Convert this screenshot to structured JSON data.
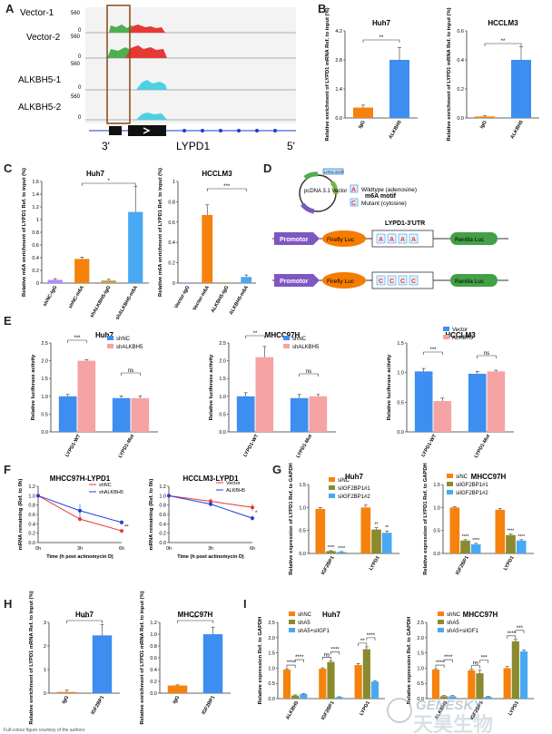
{
  "panels": {
    "A": {
      "label": "A",
      "tracks": [
        {
          "name": "Vector-1",
          "ymax": "560",
          "ymin": "0"
        },
        {
          "name": "Vector-2",
          "ymax": "560",
          "ymin": "0"
        },
        {
          "name": "ALKBH5-1",
          "ymax": "560",
          "ymin": "0"
        },
        {
          "name": "ALKBH5-2",
          "ymax": "560",
          "ymin": "0"
        }
      ],
      "end3": "3'",
      "gene": "LYPD1",
      "end5": "5'",
      "colors": {
        "vector": "#e53935",
        "vector_fill2": "#4caf50",
        "alkbh5": "#4dd0e1",
        "box": "#8b4513"
      }
    },
    "B": {
      "label": "B",
      "chart_data": [
        {
          "type": "bar",
          "title": "Huh7",
          "ylabel": "Relative enrichment of LYPD1 mRNA Ref. to input (%)",
          "categories": [
            "IgG",
            "ALKBH5"
          ],
          "values": [
            0.5,
            2.8
          ],
          "errors": [
            0.12,
            0.6
          ],
          "ylim": [
            0,
            4.2
          ],
          "ticks": [
            "0.0",
            "1.4",
            "2.8",
            "4.2"
          ],
          "sig": "**"
        },
        {
          "type": "bar",
          "title": "HCCLM3",
          "ylabel": "Relative enrichment of LYPD1 mRNA Ref. to input (%)",
          "categories": [
            "IgG",
            "ALKBH5"
          ],
          "values": [
            0.01,
            0.4
          ],
          "errors": [
            0.005,
            0.09
          ],
          "ylim": [
            0,
            0.6
          ],
          "ticks": [
            "0.0",
            "0.2",
            "0.4",
            "0.6"
          ],
          "sig": "**"
        }
      ]
    },
    "C": {
      "label": "C",
      "chart_data": [
        {
          "type": "bar",
          "title": "Huh7",
          "ylabel": "Relative m6A enrichment of LYPD1 Ref. to input (%)",
          "categories": [
            "shNC-IgG",
            "shNC-m6A",
            "shALKBH5-IgG",
            "shALKBH5-m6A"
          ],
          "values": [
            0.05,
            0.38,
            0.04,
            1.12
          ],
          "errors": [
            0.02,
            0.03,
            0.02,
            0.4
          ],
          "ylim": [
            0,
            1.6
          ],
          "ticks": [
            "0",
            "0.2",
            "0.4",
            "0.6",
            "0.8",
            "1",
            "1.2",
            "1.4",
            "1.6"
          ],
          "sig": "*"
        },
        {
          "type": "bar",
          "title": "HCCLM3",
          "ylabel": "Relative m6A enrichment of LYPD1 Ref. to input (%)",
          "categories": [
            "Vector-IgG",
            "Vector-m6A",
            "ALKBH5-IgG",
            "ALKBH5-m6A"
          ],
          "values": [
            0.0,
            0.67,
            0.0,
            0.06
          ],
          "errors": [
            0.0,
            0.1,
            0.0,
            0.02
          ],
          "ylim": [
            0,
            1.0
          ],
          "ticks": [
            "0",
            "0.2",
            "0.4",
            "0.6",
            "0.8",
            "1"
          ],
          "sig": "***"
        }
      ]
    },
    "D": {
      "label": "D",
      "plasmid": "pcDNA 3.1 Vector",
      "utr_small": "LYPD1-3'UTR",
      "motif": "m6A motif",
      "wt_letter": "A",
      "wt_text": "Wildtype (adenosine)",
      "mut_letter": "C",
      "mut_text": "Mutant (cytosine)",
      "utr_title": "LYPD1-3'UTR",
      "promotor": "Promotor",
      "firefly": "Firefly Luc",
      "renilla": "Renilla Luc"
    },
    "E": {
      "label": "E",
      "chart_data": [
        {
          "type": "bar",
          "title": "Huh7",
          "ylabel": "Relative luciferase activity",
          "categories": [
            "LYPD1-WT",
            "LYPD1-Mut"
          ],
          "series": [
            {
              "name": "shNC",
              "values": [
                1.0,
                0.95
              ],
              "errors": [
                0.05,
                0.06
              ]
            },
            {
              "name": "shALKBH5",
              "values": [
                2.0,
                0.95
              ],
              "errors": [
                0.03,
                0.06
              ]
            }
          ],
          "ylim": [
            0,
            2.5
          ],
          "ticks": [
            "0.0",
            "0.5",
            "1.0",
            "1.5",
            "2.0",
            "2.5"
          ],
          "sig": [
            "***",
            "ns"
          ]
        },
        {
          "type": "bar",
          "title": "MHCC97H",
          "ylabel": "Relative luciferase activity",
          "categories": [
            "LYPD1-WT",
            "LYPD1-Mut"
          ],
          "series": [
            {
              "name": "shNC",
              "values": [
                1.0,
                0.95
              ],
              "errors": [
                0.1,
                0.1
              ]
            },
            {
              "name": "shALKBH5",
              "values": [
                2.1,
                1.0
              ],
              "errors": [
                0.3,
                0.05
              ]
            }
          ],
          "ylim": [
            0,
            2.5
          ],
          "ticks": [
            "0.0",
            "0.5",
            "1.0",
            "1.5",
            "2.0",
            "2.5"
          ],
          "sig": [
            "**",
            "ns"
          ]
        },
        {
          "type": "bar",
          "title": "HCCLM3",
          "ylabel": "Relative luciferase activity",
          "categories": [
            "LYPD1-WT",
            "LYPD1-Mut"
          ],
          "series": [
            {
              "name": "Vector",
              "values": [
                1.02,
                0.98
              ],
              "errors": [
                0.05,
                0.04
              ]
            },
            {
              "name": "ALKBH5",
              "values": [
                0.52,
                1.02
              ],
              "errors": [
                0.05,
                0.02
              ]
            }
          ],
          "ylim": [
            0,
            1.5
          ],
          "ticks": [
            "0.0",
            "0.5",
            "1.0",
            "1.5"
          ],
          "sig": [
            "***",
            "ns"
          ]
        }
      ]
    },
    "F": {
      "label": "F",
      "chart_data": [
        {
          "type": "line",
          "title": "MHCC97H-LYPD1",
          "xlabel": "Time (h post actinomycin D)",
          "ylabel": "mRNA remaining (Ref. to 0h)",
          "x": [
            "0h",
            "3h",
            "6h"
          ],
          "series": [
            {
              "name": "shNC",
              "values": [
                1.0,
                0.5,
                0.25
              ],
              "errors": [
                0.02,
                0.05,
                0.03
              ]
            },
            {
              "name": "shALKBH5",
              "values": [
                1.0,
                0.68,
                0.43
              ],
              "errors": [
                0.02,
                0.15,
                0.05
              ]
            }
          ],
          "ylim": [
            0,
            1.2
          ],
          "ticks": [
            "0.0",
            "0.2",
            "0.4",
            "0.6",
            "0.8",
            "1.0",
            "1.2"
          ],
          "sig": "**"
        },
        {
          "type": "line",
          "title": "HCCLM3-LYPD1",
          "xlabel": "Time (h post actinomycin D)",
          "ylabel": "mRNA remaining (Ref. to 0h)",
          "x": [
            "0h",
            "3h",
            "6h"
          ],
          "series": [
            {
              "name": "Vector",
              "values": [
                1.0,
                0.88,
                0.75
              ],
              "errors": [
                0.02,
                0.06,
                0.08
              ]
            },
            {
              "name": "ALKBH5",
              "values": [
                1.0,
                0.82,
                0.52
              ],
              "errors": [
                0.02,
                0.05,
                0.05
              ]
            }
          ],
          "ylim": [
            0,
            1.2
          ],
          "ticks": [
            "0.0",
            "0.2",
            "0.4",
            "0.6",
            "0.8",
            "1.0",
            "1.2"
          ],
          "sig": "*"
        }
      ]
    },
    "G": {
      "label": "G",
      "chart_data": [
        {
          "type": "bar",
          "title": "Huh7",
          "ylabel": "Relative expression of LYPD1 Ref. to GAPDH",
          "categories": [
            "IGF2BP1",
            "LYPD1"
          ],
          "series": [
            {
              "name": "siNC",
              "values": [
                0.97,
                1.0
              ],
              "errors": [
                0.03,
                0.05
              ]
            },
            {
              "name": "siIGF2BP1#1",
              "values": [
                0.05,
                0.52
              ],
              "errors": [
                0.01,
                0.04
              ]
            },
            {
              "name": "siIGF2BP1#2",
              "values": [
                0.03,
                0.45
              ],
              "errors": [
                0.01,
                0.04
              ]
            }
          ],
          "ylim": [
            0,
            1.5
          ],
          "ticks": [
            "0.0",
            "0.5",
            "1.0",
            "1.5"
          ],
          "sig": [
            [
              "****",
              "****"
            ],
            [
              "**",
              "**"
            ]
          ]
        },
        {
          "type": "bar",
          "title": "MHCC97H",
          "ylabel": "Relative expression of LYPD1 Ref. to GAPDH",
          "categories": [
            "IGF2BP1",
            "LYPD1"
          ],
          "series": [
            {
              "name": "siNC",
              "values": [
                1.0,
                0.95
              ],
              "errors": [
                0.02,
                0.03
              ]
            },
            {
              "name": "siIGF2BP1#1",
              "values": [
                0.28,
                0.4
              ],
              "errors": [
                0.02,
                0.02
              ]
            },
            {
              "name": "siIGF2BP1#2",
              "values": [
                0.2,
                0.28
              ],
              "errors": [
                0.02,
                0.02
              ]
            }
          ],
          "ylim": [
            0,
            1.5
          ],
          "ticks": [
            "0.0",
            "0.5",
            "1.0",
            "1.5"
          ],
          "sig": [
            [
              "****",
              "****"
            ],
            [
              "****",
              "****"
            ]
          ]
        }
      ]
    },
    "H": {
      "label": "H",
      "chart_data": [
        {
          "type": "bar",
          "title": "Huh7",
          "ylabel": "Relative enrichment of LYPD1 mRNA Ref. to input (%)",
          "categories": [
            "IgG",
            "IGF2BP1"
          ],
          "values": [
            0.05,
            2.45
          ],
          "errors": [
            0.08,
            0.45
          ],
          "ylim": [
            0,
            3
          ],
          "ticks": [
            "0",
            "1",
            "2",
            "3"
          ],
          "sig": "***"
        },
        {
          "type": "bar",
          "title": "MHCC97H",
          "ylabel": "Relative enrichment of LYPD1 mRNA Ref. to input (%)",
          "categories": [
            "IgG",
            "IGF2BP1"
          ],
          "values": [
            0.13,
            1.0
          ],
          "errors": [
            0.01,
            0.12
          ],
          "ylim": [
            0,
            1.2
          ],
          "ticks": [
            "0.0",
            "0.2",
            "0.4",
            "0.6",
            "0.8",
            "1.0",
            "1.2"
          ],
          "sig": "***"
        }
      ]
    },
    "I": {
      "label": "I",
      "chart_data": [
        {
          "type": "bar",
          "title": "Huh7",
          "ylabel": "Relative expression Ref. to GAPDH",
          "categories": [
            "ALKBH5",
            "IGF2BP1",
            "LYPD1"
          ],
          "series": [
            {
              "name": "shNC",
              "values": [
                0.95,
                0.98,
                1.1
              ],
              "errors": [
                0.03,
                0.03,
                0.05
              ]
            },
            {
              "name": "shA5",
              "values": [
                0.1,
                1.2,
                1.62
              ],
              "errors": [
                0.02,
                0.04,
                0.08
              ]
            },
            {
              "name": "shA5+siIGF1",
              "values": [
                0.15,
                0.05,
                0.56
              ],
              "errors": [
                0.02,
                0.01,
                0.03
              ]
            }
          ],
          "ylim": [
            0,
            2.5
          ],
          "ticks": [
            "0.0",
            "0.5",
            "1.0",
            "1.5",
            "2.0",
            "2.5"
          ],
          "sig": [
            "****",
            "****",
            "ns",
            "****",
            "**",
            "****"
          ]
        },
        {
          "type": "bar",
          "title": "MHCC97H",
          "ylabel": "Relative expression Ref. to GAPDH",
          "categories": [
            "ALKBH5",
            "IGF2BP1",
            "LYPD1"
          ],
          "series": [
            {
              "name": "shNC",
              "values": [
                0.95,
                0.93,
                1.0
              ],
              "errors": [
                0.03,
                0.03,
                0.05
              ]
            },
            {
              "name": "shA5",
              "values": [
                0.08,
                0.83,
                1.88
              ],
              "errors": [
                0.02,
                0.1,
                0.06
              ]
            },
            {
              "name": "shA5+siIGF1",
              "values": [
                0.08,
                0.06,
                1.55
              ],
              "errors": [
                0.02,
                0.01,
                0.05
              ]
            }
          ],
          "ylim": [
            0,
            2.5
          ],
          "ticks": [
            "0.0",
            "0.5",
            "1.0",
            "1.5",
            "2.0",
            "2.5"
          ],
          "sig": [
            "****",
            "****",
            "ns",
            "***",
            "****",
            "***"
          ]
        }
      ]
    }
  },
  "watermark": {
    "brand": "GENESKY",
    "cn": "天昊生物"
  },
  "footer": "Full-colour figure courtesy of the authors"
}
